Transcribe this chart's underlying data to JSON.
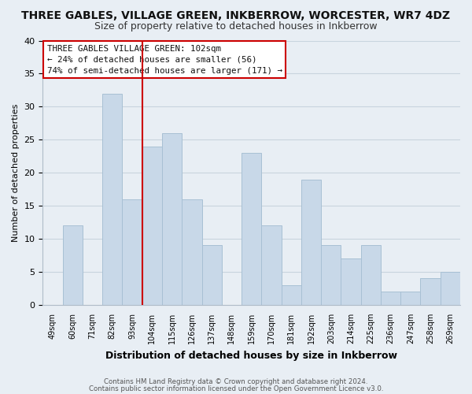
{
  "title": "THREE GABLES, VILLAGE GREEN, INKBERROW, WORCESTER, WR7 4DZ",
  "subtitle": "Size of property relative to detached houses in Inkberrow",
  "xlabel": "Distribution of detached houses by size in Inkberrow",
  "ylabel": "Number of detached properties",
  "bar_labels": [
    "49sqm",
    "60sqm",
    "71sqm",
    "82sqm",
    "93sqm",
    "104sqm",
    "115sqm",
    "126sqm",
    "137sqm",
    "148sqm",
    "159sqm",
    "170sqm",
    "181sqm",
    "192sqm",
    "203sqm",
    "214sqm",
    "225sqm",
    "236sqm",
    "247sqm",
    "258sqm",
    "269sqm"
  ],
  "bar_values": [
    0,
    12,
    0,
    32,
    16,
    24,
    26,
    16,
    9,
    0,
    23,
    12,
    3,
    19,
    9,
    7,
    9,
    2,
    2,
    4,
    5
  ],
  "bar_color": "#c8d8e8",
  "bar_edgecolor": "#a8c0d4",
  "vline_x_index": 4.5,
  "vline_color": "#cc0000",
  "ylim": [
    0,
    40
  ],
  "yticks": [
    0,
    5,
    10,
    15,
    20,
    25,
    30,
    35,
    40
  ],
  "annotation_title": "THREE GABLES VILLAGE GREEN: 102sqm",
  "annotation_line1": "← 24% of detached houses are smaller (56)",
  "annotation_line2": "74% of semi-detached houses are larger (171) →",
  "footer1": "Contains HM Land Registry data © Crown copyright and database right 2024.",
  "footer2": "Contains public sector information licensed under the Open Government Licence v3.0.",
  "bg_color": "#e8eef4",
  "plot_bg_color": "#e8eef4",
  "grid_color": "#c8d4de",
  "title_fontsize": 10,
  "subtitle_fontsize": 9,
  "ylabel_fontsize": 8,
  "xlabel_fontsize": 9
}
